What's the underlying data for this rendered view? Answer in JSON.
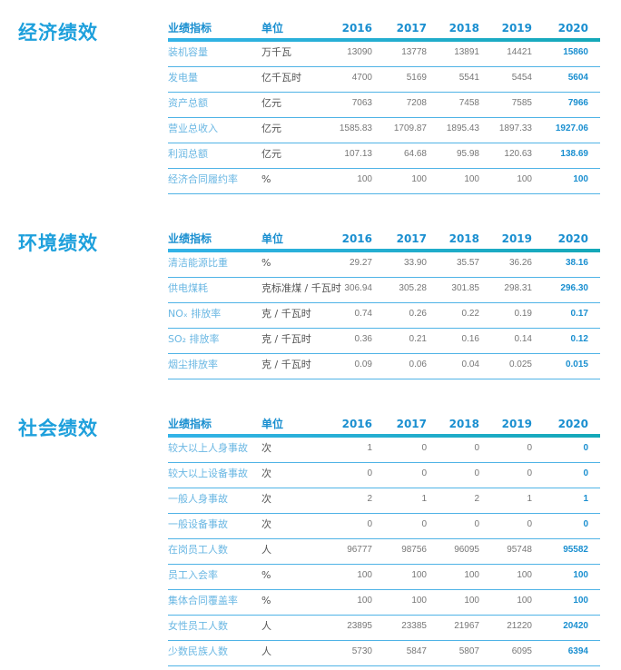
{
  "header": {
    "indicator": "业绩指标",
    "unit": "单位",
    "years": [
      "2016",
      "2017",
      "2018",
      "2019",
      "2020"
    ]
  },
  "sections": [
    {
      "title": "经济绩效",
      "rows": [
        {
          "label": "装机容量",
          "unit": "万千瓦",
          "values": [
            "13090",
            "13778",
            "13891",
            "14421",
            "15860"
          ]
        },
        {
          "label": "发电量",
          "unit": "亿千瓦时",
          "values": [
            "4700",
            "5169",
            "5541",
            "5454",
            "5604"
          ]
        },
        {
          "label": "资产总额",
          "unit": "亿元",
          "values": [
            "7063",
            "7208",
            "7458",
            "7585",
            "7966"
          ]
        },
        {
          "label": "营业总收入",
          "unit": "亿元",
          "values": [
            "1585.83",
            "1709.87",
            "1895.43",
            "1897.33",
            "1927.06"
          ]
        },
        {
          "label": "利润总额",
          "unit": "亿元",
          "values": [
            "107.13",
            "64.68",
            "95.98",
            "120.63",
            "138.69"
          ]
        },
        {
          "label": "经济合同履约率",
          "unit": "%",
          "values": [
            "100",
            "100",
            "100",
            "100",
            "100"
          ]
        }
      ]
    },
    {
      "title": "环境绩效",
      "rows": [
        {
          "label": "清洁能源比重",
          "unit": "%",
          "values": [
            "29.27",
            "33.90",
            "35.57",
            "36.26",
            "38.16"
          ]
        },
        {
          "label": "供电煤耗",
          "unit": "克标准煤 / 千瓦时",
          "values": [
            "306.94",
            "305.28",
            "301.85",
            "298.31",
            "296.30"
          ]
        },
        {
          "label": "NOₓ 排放率",
          "unit": "克 / 千瓦时",
          "values": [
            "0.74",
            "0.26",
            "0.22",
            "0.19",
            "0.17"
          ]
        },
        {
          "label": "SO₂ 排放率",
          "unit": "克 / 千瓦时",
          "values": [
            "0.36",
            "0.21",
            "0.16",
            "0.14",
            "0.12"
          ]
        },
        {
          "label": "烟尘排放率",
          "unit": "克 / 千瓦时",
          "values": [
            "0.09",
            "0.06",
            "0.04",
            "0.025",
            "0.015"
          ]
        }
      ]
    },
    {
      "title": "社会绩效",
      "rows": [
        {
          "label": "较大以上人身事故",
          "unit": "次",
          "values": [
            "1",
            "0",
            "0",
            "0",
            "0"
          ]
        },
        {
          "label": "较大以上设备事故",
          "unit": "次",
          "values": [
            "0",
            "0",
            "0",
            "0",
            "0"
          ]
        },
        {
          "label": "一般人身事故",
          "unit": "次",
          "values": [
            "2",
            "1",
            "2",
            "1",
            "1"
          ]
        },
        {
          "label": "一般设备事故",
          "unit": "次",
          "values": [
            "0",
            "0",
            "0",
            "0",
            "0"
          ]
        },
        {
          "label": "在岗员工人数",
          "unit": "人",
          "values": [
            "96777",
            "98756",
            "96095",
            "95748",
            "95582"
          ]
        },
        {
          "label": "员工入会率",
          "unit": "%",
          "values": [
            "100",
            "100",
            "100",
            "100",
            "100"
          ]
        },
        {
          "label": "集体合同覆盖率",
          "unit": "%",
          "values": [
            "100",
            "100",
            "100",
            "100",
            "100"
          ]
        },
        {
          "label": "女性员工人数",
          "unit": "人",
          "values": [
            "23895",
            "23385",
            "21967",
            "21220",
            "20420"
          ]
        },
        {
          "label": "少数民族人数",
          "unit": "人",
          "values": [
            "5730",
            "5847",
            "5807",
            "6095",
            "6394"
          ]
        }
      ]
    }
  ],
  "colors": {
    "accent": "#1a8fd0",
    "label": "#6ab7e3"
  }
}
